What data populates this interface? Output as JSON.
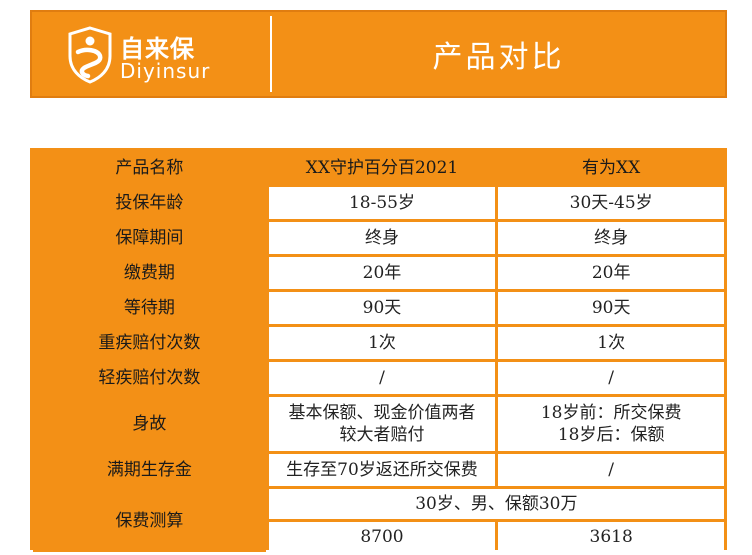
{
  "banner": {
    "logo_cn": "自来保",
    "logo_en": "Diyinsur",
    "title": "产品对比",
    "color": "#f39016"
  },
  "table": {
    "headers": [
      "产品名称",
      "XX守护百分百2021",
      "有为XX"
    ],
    "rows": [
      {
        "label": "投保年龄",
        "a": "18-55岁",
        "b": "30天-45岁"
      },
      {
        "label": "保障期间",
        "a": "终身",
        "b": "终身"
      },
      {
        "label": "缴费期",
        "a": "20年",
        "b": "20年"
      },
      {
        "label": "等待期",
        "a": "90天",
        "b": "90天"
      },
      {
        "label": "重疾赔付次数",
        "a": "1次",
        "b": "1次"
      },
      {
        "label": "轻疾赔付次数",
        "a": "/",
        "b": "/"
      }
    ],
    "death": {
      "label": "身故",
      "a_line1": "基本保额、现金价值两者",
      "a_line2": "较大者赔付",
      "b_line1": "18岁前：所交保费",
      "b_line2": "18岁后：保额"
    },
    "maturity": {
      "label": "满期生存金",
      "a": "生存至70岁返还所交保费",
      "b": "/"
    },
    "premium": {
      "label": "保费测算",
      "condition": "30岁、男、保额30万",
      "a": "8700",
      "b": "3618"
    }
  }
}
